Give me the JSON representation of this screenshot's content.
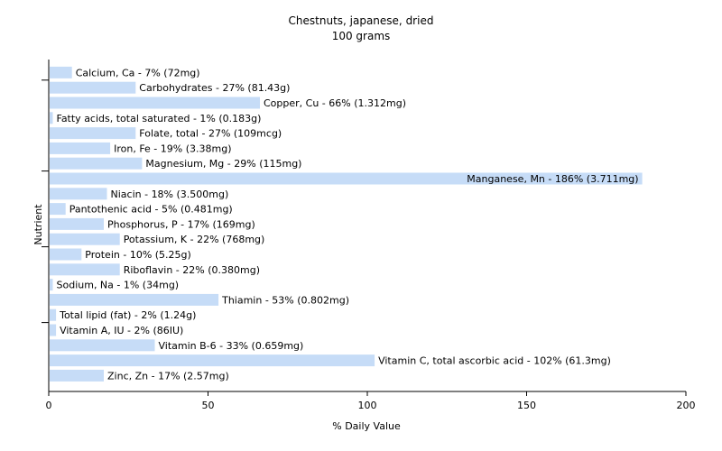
{
  "chart_data": {
    "type": "bar",
    "orientation": "horizontal",
    "title": "Chestnuts, japanese, dried",
    "subtitle": "100 grams",
    "xlabel": "% Daily Value",
    "ylabel": "Nutrient",
    "xlim": [
      0,
      200
    ],
    "xticks": [
      0,
      50,
      100,
      150,
      200
    ],
    "grid": false,
    "bar_color": "#c6dcf7",
    "categories": [
      "Calcium, Ca",
      "Carbohydrates",
      "Copper, Cu",
      "Fatty acids, total saturated",
      "Folate, total",
      "Iron, Fe",
      "Magnesium, Mg",
      "Manganese, Mn",
      "Niacin",
      "Pantothenic acid",
      "Phosphorus, P",
      "Potassium, K",
      "Protein",
      "Riboflavin",
      "Sodium, Na",
      "Thiamin",
      "Total lipid (fat)",
      "Vitamin A, IU",
      "Vitamin B-6",
      "Vitamin C, total ascorbic acid",
      "Zinc, Zn"
    ],
    "values": [
      7,
      27,
      66,
      1,
      27,
      19,
      29,
      186,
      18,
      5,
      17,
      22,
      10,
      22,
      1,
      53,
      2,
      2,
      33,
      102,
      17
    ],
    "labels": [
      "Calcium, Ca - 7% (72mg)",
      "Carbohydrates - 27% (81.43g)",
      "Copper, Cu - 66% (1.312mg)",
      "Fatty acids, total saturated - 1% (0.183g)",
      "Folate, total - 27% (109mcg)",
      "Iron, Fe - 19% (3.38mg)",
      "Magnesium, Mg - 29% (115mg)",
      "Manganese, Mn - 186% (3.711mg)",
      "Niacin - 18% (3.500mg)",
      "Pantothenic acid - 5% (0.481mg)",
      "Phosphorus, P - 17% (169mg)",
      "Potassium, K - 22% (768mg)",
      "Protein - 10% (5.25g)",
      "Riboflavin - 22% (0.380mg)",
      "Sodium, Na - 1% (34mg)",
      "Thiamin - 53% (0.802mg)",
      "Total lipid (fat) - 2% (1.24g)",
      "Vitamin A, IU - 2% (86IU)",
      "Vitamin B-6 - 33% (0.659mg)",
      "Vitamin C, total ascorbic acid - 102% (61.3mg)",
      "Zinc, Zn - 17% (2.57mg)"
    ]
  }
}
